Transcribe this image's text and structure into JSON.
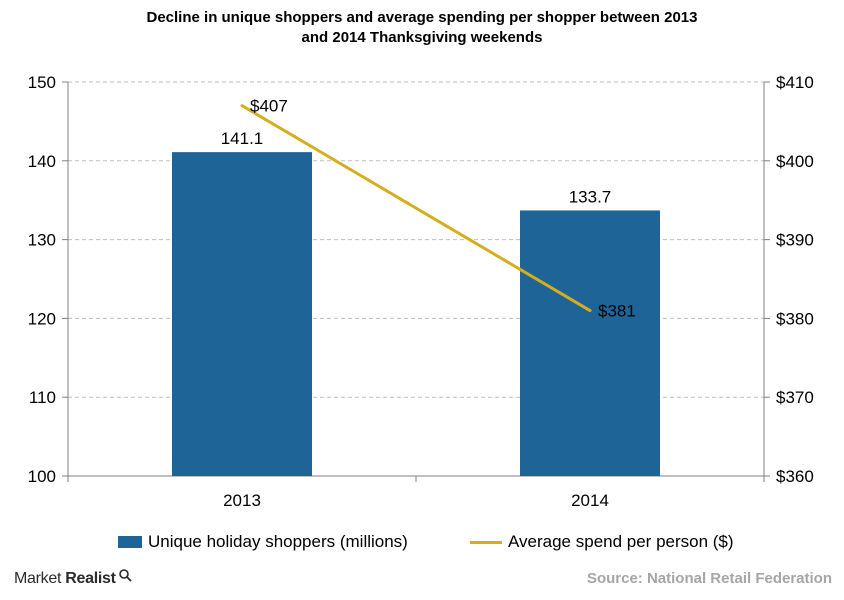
{
  "title_line1": "Decline in unique shoppers and average spending per shopper between 2013",
  "title_line2": "and 2014 Thanksgiving weekends",
  "colors": {
    "bar": "#1f6496",
    "line": "#d4ae1e",
    "grid": "#bfbfbf",
    "axis": "#808080"
  },
  "chart_data": {
    "type": "bar",
    "title": "Decline in unique shoppers and average spending per shopper between 2013 and 2014 Thanksgiving weekends",
    "categories": [
      "2013",
      "2014"
    ],
    "series": [
      {
        "name": "Unique holiday shoppers (millions)",
        "type": "bar",
        "axis": "left",
        "values": [
          141.1,
          133.7
        ],
        "labels": [
          "141.1",
          "133.7"
        ]
      },
      {
        "name": "Average spend per person ($)",
        "type": "line",
        "axis": "right",
        "values": [
          407,
          381
        ],
        "labels": [
          "$407",
          "$381"
        ]
      }
    ],
    "y_left": {
      "lim": [
        100,
        150
      ],
      "ticks": [
        "100",
        "110",
        "120",
        "130",
        "140",
        "150"
      ]
    },
    "y_right": {
      "lim": [
        360,
        410
      ],
      "ticks": [
        "$360",
        "$370",
        "$380",
        "$390",
        "$400",
        "$410"
      ]
    },
    "grid": true,
    "legend_position": "bottom"
  },
  "legend": {
    "bar_label": "Unique holiday shoppers (millions)",
    "line_label": "Average spend per person ($)"
  },
  "brand": {
    "name_part1": "Market",
    "name_part2": "Realist",
    "icon": "magnifier-icon"
  },
  "source": "Source: National Retail Federation"
}
